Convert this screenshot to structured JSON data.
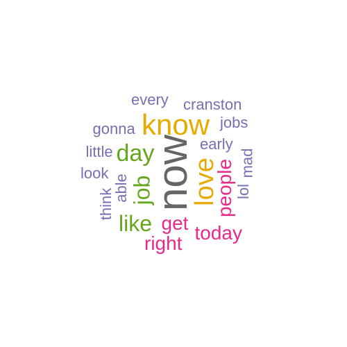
{
  "palette": {
    "purple": "#7570b3",
    "orange": "#e6ab02",
    "green": "#66a61e",
    "magenta": "#e7298a",
    "gray": "#666666"
  },
  "words": [
    {
      "text": "now",
      "color": "gray",
      "vertical": true
    },
    {
      "text": "know",
      "color": "orange",
      "vertical": false
    },
    {
      "text": "love",
      "color": "orange",
      "vertical": true
    },
    {
      "text": "day",
      "color": "green",
      "vertical": false
    },
    {
      "text": "job",
      "color": "green",
      "vertical": true
    },
    {
      "text": "like",
      "color": "green",
      "vertical": false
    },
    {
      "text": "people",
      "color": "magenta",
      "vertical": true
    },
    {
      "text": "today",
      "color": "magenta",
      "vertical": false
    },
    {
      "text": "right",
      "color": "magenta",
      "vertical": false
    },
    {
      "text": "get",
      "color": "magenta",
      "vertical": false
    },
    {
      "text": "cranston",
      "color": "purple",
      "vertical": false
    },
    {
      "text": "every",
      "color": "purple",
      "vertical": false
    },
    {
      "text": "gonna",
      "color": "purple",
      "vertical": false
    },
    {
      "text": "jobs",
      "color": "purple",
      "vertical": false
    },
    {
      "text": "early",
      "color": "purple",
      "vertical": false
    },
    {
      "text": "little",
      "color": "purple",
      "vertical": false
    },
    {
      "text": "look",
      "color": "purple",
      "vertical": false
    },
    {
      "text": "mad",
      "color": "purple",
      "vertical": true
    },
    {
      "text": "lol",
      "color": "purple",
      "vertical": true
    },
    {
      "text": "able",
      "color": "purple",
      "vertical": true
    },
    {
      "text": "think",
      "color": "purple",
      "vertical": true
    }
  ]
}
